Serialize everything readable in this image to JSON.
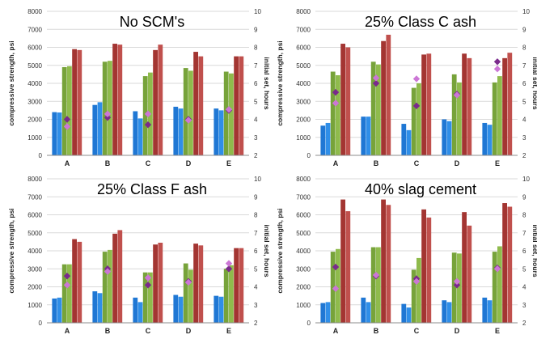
{
  "chart_data": [
    {
      "type": "bar",
      "title": "No SCM's",
      "categories": [
        "A",
        "B",
        "C",
        "D",
        "E"
      ],
      "ylabel": "compressive strength, psi",
      "y2label": "initial set, hours",
      "ylim": [
        0,
        8000
      ],
      "y2lim": [
        2,
        10
      ],
      "yticks": [
        "0",
        "1000",
        "2000",
        "3000",
        "4000",
        "5000",
        "6000",
        "7000",
        "8000"
      ],
      "y2ticks": [
        "2",
        "3",
        "4",
        "5",
        "6",
        "7",
        "8",
        "9",
        "10"
      ],
      "series": [
        {
          "values": [
            2400,
            2800,
            2450,
            2700,
            2600
          ],
          "color": "#1f77d4"
        },
        {
          "values": [
            2380,
            2950,
            2050,
            2600,
            2500
          ],
          "color": "#2f8ee8"
        },
        {
          "values": [
            4900,
            5200,
            4400,
            4850,
            4650
          ],
          "color": "#77a33a"
        },
        {
          "values": [
            4950,
            5250,
            4600,
            4700,
            4550
          ],
          "color": "#8fbb4c"
        },
        {
          "values": [
            5900,
            6200,
            5850,
            5750,
            5500
          ],
          "color": "#a33532"
        },
        {
          "values": [
            5850,
            6150,
            6150,
            5500,
            5500
          ],
          "color": "#c0504d"
        }
      ],
      "set_series": [
        {
          "values": [
            4.0,
            4.1,
            3.7,
            4.0,
            4.5
          ],
          "color": "#7a2a8c"
        },
        {
          "values": [
            3.6,
            4.3,
            4.3,
            3.95,
            4.55
          ],
          "color": "#cc77d6"
        }
      ]
    },
    {
      "type": "bar",
      "title": "25% Class C ash",
      "categories": [
        "A",
        "B",
        "C",
        "D",
        "E"
      ],
      "ylabel": "compressive strength, psi",
      "y2label": "initial set, hours",
      "ylim": [
        0,
        8000
      ],
      "y2lim": [
        2,
        10
      ],
      "yticks": [
        "0",
        "1000",
        "2000",
        "3000",
        "4000",
        "5000",
        "6000",
        "7000",
        "8000"
      ],
      "y2ticks": [
        "2",
        "3",
        "4",
        "5",
        "6",
        "7",
        "8",
        "9",
        "10"
      ],
      "series": [
        {
          "values": [
            1650,
            2150,
            1750,
            2000,
            1800
          ],
          "color": "#1f77d4"
        },
        {
          "values": [
            1800,
            2150,
            1400,
            1900,
            1700
          ],
          "color": "#2f8ee8"
        },
        {
          "values": [
            4650,
            5200,
            3750,
            4500,
            4050
          ],
          "color": "#77a33a"
        },
        {
          "values": [
            4450,
            5050,
            4000,
            4050,
            4400
          ],
          "color": "#8fbb4c"
        },
        {
          "values": [
            6200,
            6350,
            5600,
            5650,
            5400
          ],
          "color": "#a33532"
        },
        {
          "values": [
            6000,
            6700,
            5650,
            5400,
            5700
          ],
          "color": "#c0504d"
        }
      ],
      "set_series": [
        {
          "values": [
            5.5,
            6.0,
            4.75,
            5.4,
            7.2
          ],
          "color": "#7a2a8c"
        },
        {
          "values": [
            4.9,
            6.3,
            6.25,
            5.35,
            6.8
          ],
          "color": "#cc77d6"
        }
      ]
    },
    {
      "type": "bar",
      "title": "25% Class F ash",
      "categories": [
        "A",
        "B",
        "C",
        "D",
        "E"
      ],
      "ylabel": "compressive strength, psi",
      "y2label": "initial set, hours",
      "ylim": [
        0,
        8000
      ],
      "y2lim": [
        2,
        10
      ],
      "yticks": [
        "0",
        "1000",
        "2000",
        "3000",
        "4000",
        "5000",
        "6000",
        "7000",
        "8000"
      ],
      "y2ticks": [
        "2",
        "3",
        "4",
        "5",
        "6",
        "7",
        "8",
        "9",
        "10"
      ],
      "series": [
        {
          "values": [
            1350,
            1750,
            1400,
            1550,
            1500
          ],
          "color": "#1f77d4"
        },
        {
          "values": [
            1400,
            1650,
            1150,
            1450,
            1450
          ],
          "color": "#2f8ee8"
        },
        {
          "values": [
            3250,
            3950,
            2800,
            3300,
            3000
          ],
          "color": "#77a33a"
        },
        {
          "values": [
            3250,
            4050,
            2800,
            2950,
            3200
          ],
          "color": "#8fbb4c"
        },
        {
          "values": [
            4650,
            4950,
            4350,
            4400,
            4150
          ],
          "color": "#a33532"
        },
        {
          "values": [
            4500,
            5150,
            4450,
            4300,
            4150
          ],
          "color": "#c0504d"
        }
      ],
      "set_series": [
        {
          "values": [
            4.6,
            5.0,
            4.1,
            4.3,
            5.0
          ],
          "color": "#7a2a8c"
        },
        {
          "values": [
            4.1,
            4.85,
            4.5,
            4.25,
            5.3
          ],
          "color": "#cc77d6"
        }
      ]
    },
    {
      "type": "bar",
      "title": "40% slag cement",
      "categories": [
        "A",
        "B",
        "C",
        "D",
        "E"
      ],
      "ylabel": "compressive strength, psi",
      "y2label": "initial set, hours",
      "ylim": [
        0,
        8000
      ],
      "y2lim": [
        2,
        10
      ],
      "yticks": [
        "0",
        "1000",
        "2000",
        "3000",
        "4000",
        "5000",
        "6000",
        "7000",
        "8000"
      ],
      "y2ticks": [
        "2",
        "3",
        "4",
        "5",
        "6",
        "7",
        "8",
        "9",
        "10"
      ],
      "series": [
        {
          "values": [
            1100,
            1400,
            1050,
            1250,
            1400
          ],
          "color": "#1f77d4"
        },
        {
          "values": [
            1150,
            1150,
            850,
            1150,
            1250
          ],
          "color": "#2f8ee8"
        },
        {
          "values": [
            3950,
            4200,
            2950,
            3900,
            3950
          ],
          "color": "#77a33a"
        },
        {
          "values": [
            4100,
            4200,
            3600,
            3850,
            4250
          ],
          "color": "#8fbb4c"
        },
        {
          "values": [
            6850,
            6850,
            6300,
            6150,
            6650
          ],
          "color": "#a33532"
        },
        {
          "values": [
            6200,
            6550,
            5850,
            5400,
            6450
          ],
          "color": "#c0504d"
        }
      ],
      "set_series": [
        {
          "values": [
            5.1,
            4.6,
            4.45,
            4.1,
            5.05
          ],
          "color": "#7a2a8c"
        },
        {
          "values": [
            3.9,
            4.65,
            4.3,
            4.3,
            5.0
          ],
          "color": "#cc77d6"
        }
      ]
    }
  ]
}
